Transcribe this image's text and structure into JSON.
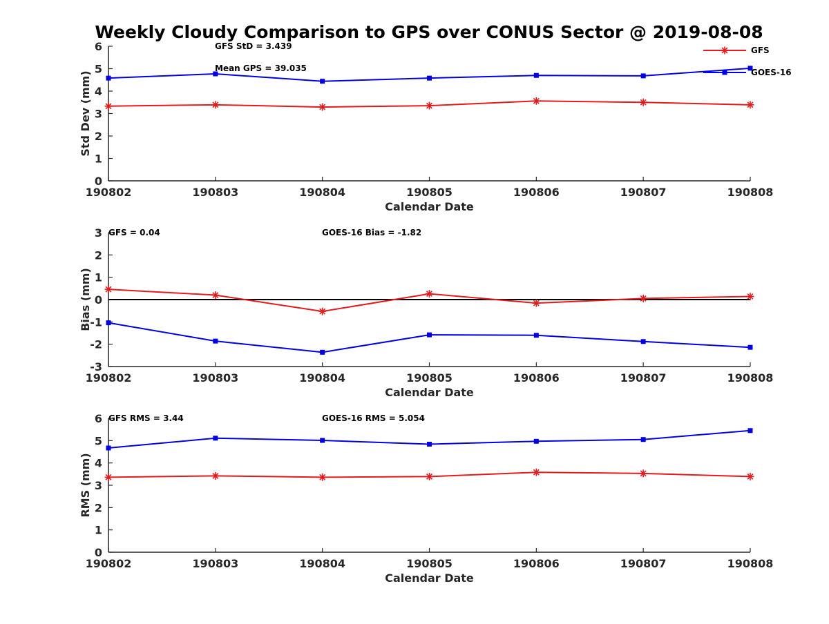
{
  "figure": {
    "title": "Weekly Cloudy Comparison to GPS over CONUS Sector @ 2019-08-08"
  },
  "colors": {
    "GFS": "#e41a1c",
    "GOES-16": "#0000e0",
    "axis": "#262626",
    "zero_line": "#000000"
  },
  "legend": {
    "placement": "top-right of first panel",
    "entries": [
      "GFS",
      "GOES-16"
    ]
  },
  "chart_data": [
    {
      "type": "line",
      "title": "",
      "xlabel": "Calendar Date",
      "ylabel": "Std Dev (mm)",
      "categories": [
        "190802",
        "190803",
        "190804",
        "190805",
        "190806",
        "190807",
        "190808"
      ],
      "ylim": [
        0,
        6
      ],
      "yticks": [
        "0",
        "1",
        "2",
        "3",
        "4",
        "5",
        "6"
      ],
      "grid": false,
      "series": [
        {
          "name": "GFS",
          "marker": "asterisk",
          "values": [
            3.33,
            3.39,
            3.29,
            3.35,
            3.56,
            3.5,
            3.39
          ]
        },
        {
          "name": "GOES-16",
          "marker": "square",
          "values": [
            4.58,
            4.77,
            4.44,
            4.58,
            4.7,
            4.68,
            5.02
          ]
        }
      ],
      "annotations": [
        {
          "text": "GFS StD = 3.439"
        },
        {
          "text": "Mean GPS = 39.035"
        }
      ]
    },
    {
      "type": "line",
      "title": "",
      "xlabel": "Calendar Date",
      "ylabel": "Bias (mm)",
      "categories": [
        "190802",
        "190803",
        "190804",
        "190805",
        "190806",
        "190807",
        "190808"
      ],
      "ylim": [
        -3,
        3
      ],
      "yticks": [
        "-3",
        "-2",
        "-1",
        "0",
        "1",
        "2",
        "3"
      ],
      "grid": false,
      "zero_line": true,
      "series": [
        {
          "name": "GFS",
          "marker": "asterisk",
          "values": [
            0.46,
            0.2,
            -0.53,
            0.26,
            -0.16,
            0.05,
            0.14
          ]
        },
        {
          "name": "GOES-16",
          "marker": "square",
          "values": [
            -1.04,
            -1.86,
            -2.36,
            -1.58,
            -1.6,
            -1.88,
            -2.14
          ]
        }
      ],
      "annotations": [
        {
          "text": "GFS = 0.04"
        },
        {
          "text": "GOES-16 Bias  = -1.82"
        }
      ]
    },
    {
      "type": "line",
      "title": "",
      "xlabel": "Calendar Date",
      "ylabel": "RMS (mm)",
      "categories": [
        "190802",
        "190803",
        "190804",
        "190805",
        "190806",
        "190807",
        "190808"
      ],
      "ylim": [
        0,
        6
      ],
      "yticks": [
        "0",
        "1",
        "2",
        "3",
        "4",
        "5",
        "6"
      ],
      "grid": false,
      "series": [
        {
          "name": "GFS",
          "marker": "asterisk",
          "values": [
            3.36,
            3.42,
            3.36,
            3.39,
            3.58,
            3.53,
            3.39
          ]
        },
        {
          "name": "GOES-16",
          "marker": "square",
          "values": [
            4.67,
            5.11,
            5.01,
            4.84,
            4.97,
            5.05,
            5.45
          ]
        }
      ],
      "annotations": [
        {
          "text": "GFS RMS = 3.44"
        },
        {
          "text": "GOES-16 RMS = 5.054"
        }
      ]
    }
  ]
}
